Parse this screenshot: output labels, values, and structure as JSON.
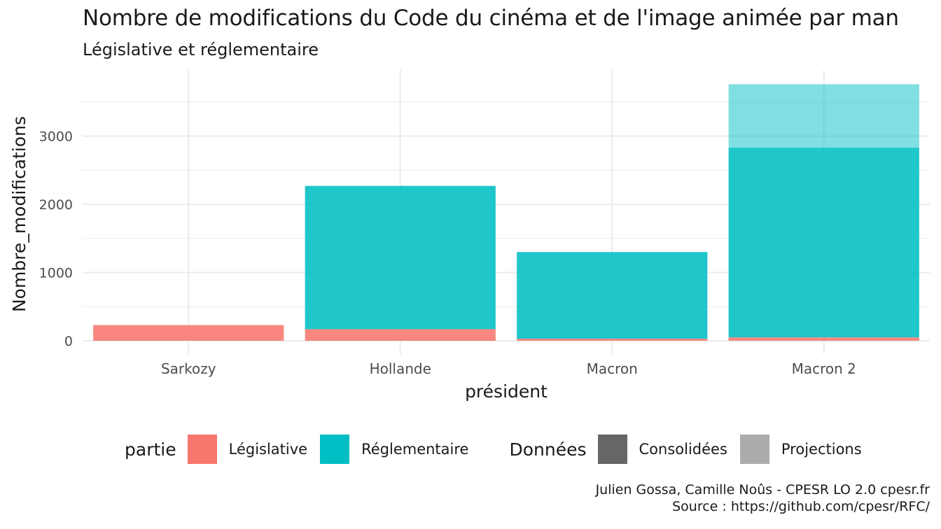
{
  "chart_data": {
    "type": "bar",
    "stacked": true,
    "title": "Nombre de modifications du Code du cinéma et de l'image animée par man",
    "subtitle": "Législative et réglementaire",
    "xlabel": "président",
    "ylabel": "Nombre_modifications",
    "categories": [
      "Sarkozy",
      "Hollande",
      "Macron",
      "Macron 2"
    ],
    "ylim": [
      0,
      3900
    ],
    "yticks": [
      0,
      1000,
      2000,
      3000
    ],
    "ytick_labels": [
      "0",
      "1000",
      "2000",
      "3000"
    ],
    "grid": true,
    "legend_position": "bottom",
    "series": [
      {
        "name": "Législative",
        "data_type": "Consolidées",
        "color": "#F8766D",
        "values": [
          230,
          170,
          30,
          50
        ]
      },
      {
        "name": "Réglementaire",
        "data_type": "Consolidées",
        "color": "#00BFC4",
        "values": [
          0,
          2100,
          1270,
          2780
        ]
      },
      {
        "name": "Réglementaire",
        "data_type": "Projections",
        "color": "#00BFC4",
        "values": [
          0,
          0,
          0,
          930
        ]
      }
    ]
  },
  "legend": {
    "fill_title": "partie",
    "fill_items": [
      {
        "label": "Législative",
        "color": "#F8766D"
      },
      {
        "label": "Réglementaire",
        "color": "#00BFC4"
      }
    ],
    "alpha_title": "Données",
    "alpha_items": [
      {
        "label": "Consolidées",
        "color": "#666666"
      },
      {
        "label": "Projections",
        "color": "#ABABAB"
      }
    ]
  },
  "caption": {
    "line1": "Julien Gossa, Camille Noûs - CPESR LO 2.0 cpesr.fr",
    "line2": "Source : https://github.com/cpesr/RFC/"
  }
}
